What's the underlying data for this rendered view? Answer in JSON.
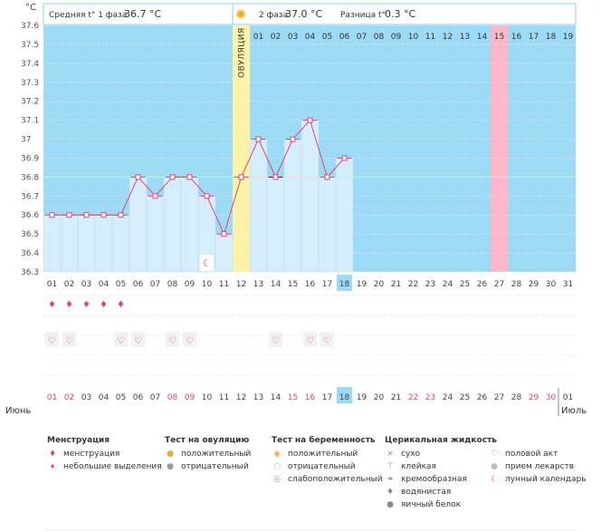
{
  "chart_data": {
    "type": "line",
    "title": "",
    "ylabel": "°C",
    "ylim": [
      36.3,
      37.6
    ],
    "yticks": [
      "37.6",
      "37.5",
      "37.4",
      "37.3",
      "37.2",
      "37.1",
      "37",
      "36.9",
      "36.8",
      "36.7",
      "36.6",
      "36.5",
      "36.4",
      "36.3"
    ],
    "days": [
      "01",
      "02",
      "03",
      "04",
      "05",
      "06",
      "07",
      "08",
      "09",
      "10",
      "11",
      "12",
      "13",
      "14",
      "15",
      "16",
      "17",
      "18",
      "19",
      "20",
      "21",
      "22",
      "23",
      "24",
      "25",
      "26",
      "27",
      "28",
      "29",
      "30",
      "31"
    ],
    "series": [
      {
        "values": [
          36.6,
          36.6,
          36.6,
          36.6,
          36.6,
          36.8,
          36.7,
          36.8,
          36.8,
          36.7,
          36.5,
          36.8,
          37.0,
          36.8,
          37.0,
          37.1,
          36.8,
          36.9
        ]
      }
    ],
    "coverline": 36.8,
    "phase1_avg_label": "Средняя t° 1 фаза",
    "phase1_avg_value": "36.7 °C",
    "phase2_label": "2 фаза",
    "phase2_value": "37.0 °C",
    "diff_label": "Разница t°",
    "diff_value": "0.3 °C",
    "ovulation_label": "ОВУЛЯЦИЯ",
    "ovulation_day_index": 11,
    "cycle_days_top": [
      "01",
      "02",
      "03",
      "04",
      "05",
      "06",
      "07",
      "08",
      "09",
      "10",
      "11",
      "12",
      "13",
      "14",
      "15",
      "16",
      "17",
      "18",
      "19"
    ],
    "highlight_cycle_day": "15",
    "today_index": 17,
    "bottom_dates": [
      "01",
      "02",
      "03",
      "04",
      "05",
      "06",
      "07",
      "08",
      "09",
      "10",
      "11",
      "12",
      "13",
      "14",
      "15",
      "16",
      "17",
      "18",
      "19",
      "20",
      "21",
      "22",
      "23",
      "24",
      "25",
      "26",
      "27",
      "28",
      "29",
      "30",
      "01"
    ],
    "red_date_indices": [
      0,
      1,
      7,
      8,
      14,
      15,
      21,
      22,
      28,
      29
    ],
    "month_left": "Июнь",
    "month_right": "Июль",
    "menstruation_days": [
      0,
      1,
      2,
      3,
      4
    ],
    "intercourse_days": [
      0,
      1,
      4,
      5,
      7,
      8,
      13,
      15,
      16
    ],
    "moon_day_index": 9,
    "colors": {
      "pre": "#d6edfb",
      "post": "#9ddaf6",
      "ovulation": "#fdf2a6",
      "line": "#e2466e",
      "pink": "#ffb6c8",
      "coverline": "#f0e98a"
    }
  },
  "legend": {
    "menstruation": {
      "title": "Менструация",
      "items": [
        "менструация",
        "небольшие выделения"
      ]
    },
    "ovulation_test": {
      "title": "Тест на овуляцию",
      "items": [
        "положительный",
        "отрицательный"
      ]
    },
    "pregnancy_test": {
      "title": "Тест на беременность",
      "items": [
        "положительный",
        "отрицательный",
        "слабоположительный"
      ]
    },
    "cervical": {
      "title": "Церикальная жидкость",
      "items": [
        "сухо",
        "клейкая",
        "кремообразная",
        "водянистая",
        "яичный белок"
      ]
    },
    "other": {
      "items": [
        "половой акт",
        "прием лекарств",
        "лунный календарь"
      ]
    }
  }
}
